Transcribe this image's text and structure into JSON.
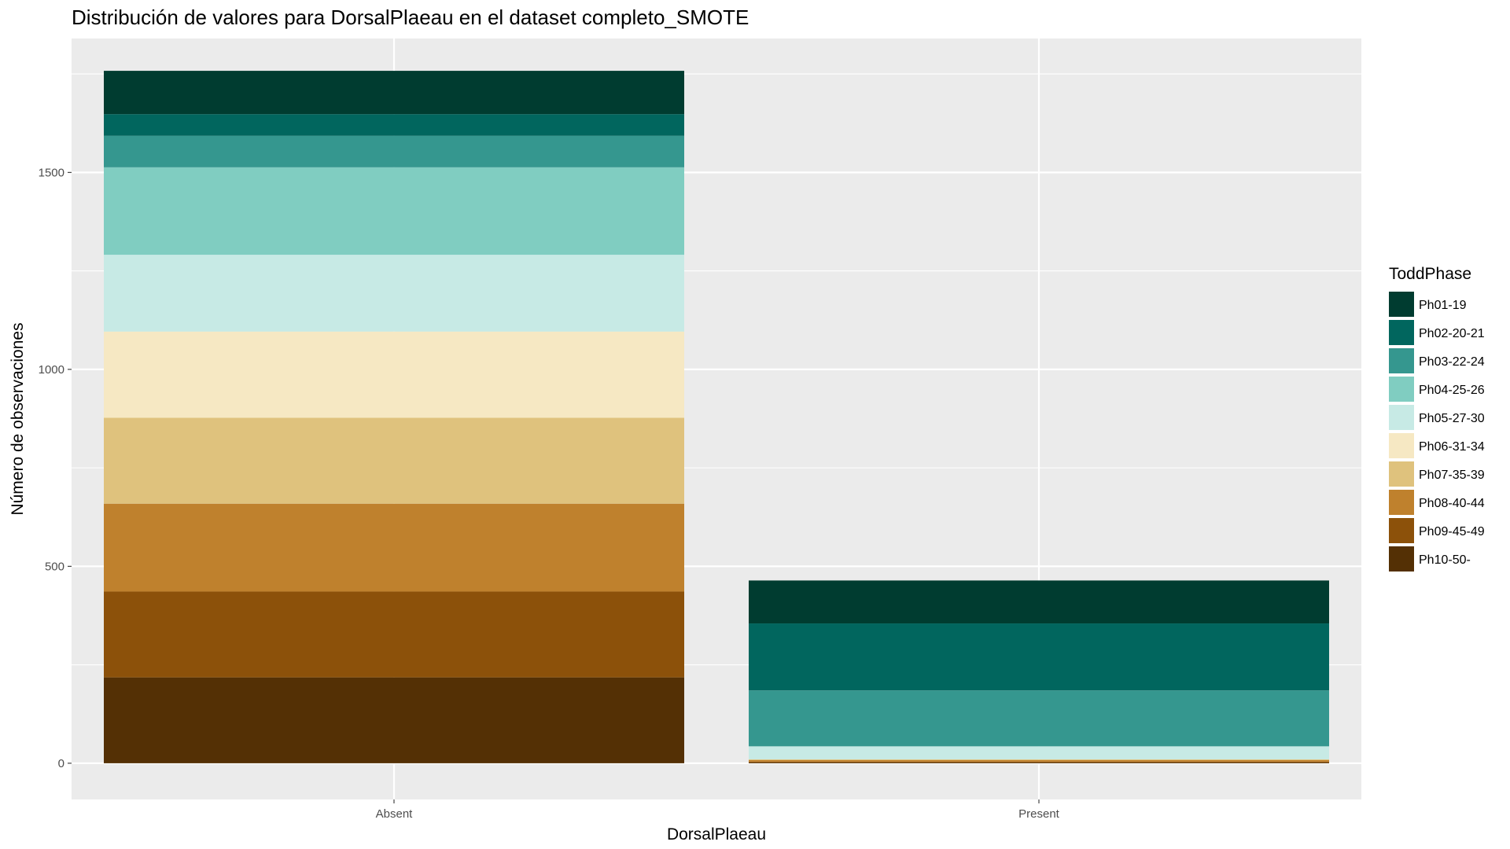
{
  "chart_data": {
    "type": "bar",
    "stacked": true,
    "title": "Distribución de valores para DorsalPlaeau en el dataset completo_SMOTE",
    "xlabel": "DorsalPlaeau",
    "ylabel": "Número de observaciones",
    "categories": [
      "Absent",
      "Present"
    ],
    "ylim": [
      -92,
      1840
    ],
    "yticks": [
      0,
      500,
      1000,
      1500
    ],
    "grid": true,
    "legend": {
      "title": "ToddPhase",
      "position": "right"
    },
    "series": [
      {
        "name": "Ph01-19",
        "color": "#003C30",
        "values": [
          110,
          109
        ]
      },
      {
        "name": "Ph02-20-21",
        "color": "#01665E",
        "values": [
          55,
          170
        ]
      },
      {
        "name": "Ph03-22-24",
        "color": "#35978F",
        "values": [
          80,
          142
        ]
      },
      {
        "name": "Ph04-25-26",
        "color": "#80CDC1",
        "values": [
          222,
          0
        ]
      },
      {
        "name": "Ph05-27-30",
        "color": "#C7EAE5",
        "values": [
          195,
          33
        ]
      },
      {
        "name": "Ph06-31-34",
        "color": "#F6E8C3",
        "values": [
          219,
          0
        ]
      },
      {
        "name": "Ph07-35-39",
        "color": "#DFC27D",
        "values": [
          218,
          2
        ]
      },
      {
        "name": "Ph08-40-44",
        "color": "#BF812D",
        "values": [
          223,
          4
        ]
      },
      {
        "name": "Ph09-45-49",
        "color": "#8C510A",
        "values": [
          218,
          2
        ]
      },
      {
        "name": "Ph10-50-",
        "color": "#543005",
        "values": [
          218,
          2
        ]
      }
    ]
  }
}
